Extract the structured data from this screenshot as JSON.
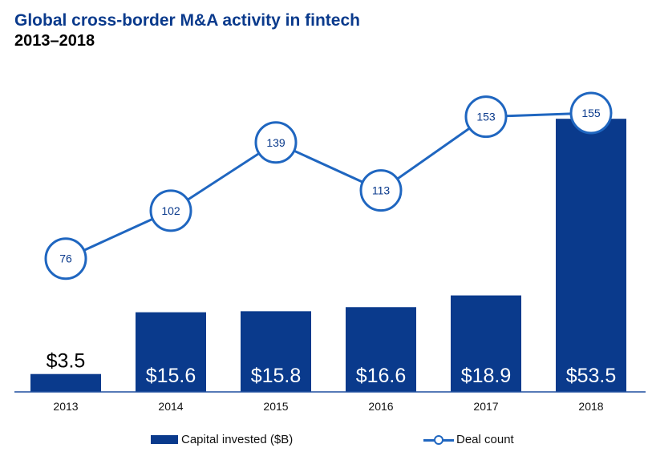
{
  "chart_data": {
    "type": "bar",
    "title": "Global cross-border M&A activity in fintech",
    "subtitle": "2013–2018",
    "categories": [
      "2013",
      "2014",
      "2015",
      "2016",
      "2017",
      "2018"
    ],
    "series": [
      {
        "name": "Capital invested ($B)",
        "type": "bar",
        "values": [
          3.5,
          15.6,
          15.8,
          16.6,
          18.9,
          53.5
        ],
        "labels": [
          "$3.5",
          "$15.6",
          "$15.8",
          "$16.6",
          "$18.9",
          "$53.5"
        ]
      },
      {
        "name": "Deal count",
        "type": "line",
        "values": [
          76,
          102,
          139,
          113,
          153,
          155
        ],
        "labels": [
          "76",
          "102",
          "139",
          "113",
          "153",
          "155"
        ]
      }
    ],
    "grid": false,
    "legend_position": "bottom",
    "colors": {
      "bar": "#0a3a8c",
      "line": "#1f66c0",
      "marker_fill": "#ffffff",
      "bar_label": "#ffffff",
      "outside_label": "#000000",
      "marker_text": "#0a3a8c"
    }
  }
}
